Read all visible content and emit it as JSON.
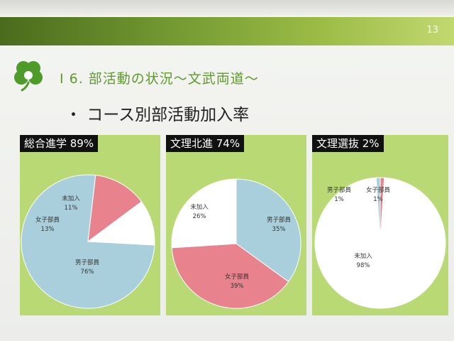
{
  "page": {
    "number": "13"
  },
  "section_title": "Ⅰ 6. 部活動の状況～文武両道～",
  "sub_title": "・ コース別部活動加入率",
  "colors": {
    "boys": "#a9cfdc",
    "girls": "#e8838e",
    "none": "#ffffff",
    "panel": "#b9d974",
    "header_green": "#6f9630",
    "title_green": "#5d9a2b"
  },
  "chart_data": [
    {
      "type": "pie",
      "title": "総合進学 89%",
      "slices": [
        {
          "label": "男子部員",
          "value": 76,
          "pct": "76%",
          "color_key": "boys"
        },
        {
          "label": "女子部員",
          "value": 13,
          "pct": "13%",
          "color_key": "girls"
        },
        {
          "label": "未加入",
          "value": 11,
          "pct": "11%",
          "color_key": "none"
        }
      ]
    },
    {
      "type": "pie",
      "title": "文理北進 74%",
      "slices": [
        {
          "label": "男子部員",
          "value": 35,
          "pct": "35%",
          "color_key": "boys"
        },
        {
          "label": "女子部員",
          "value": 39,
          "pct": "39%",
          "color_key": "girls"
        },
        {
          "label": "未加入",
          "value": 26,
          "pct": "26%",
          "color_key": "none"
        }
      ]
    },
    {
      "type": "pie",
      "title": "文理選抜 2%",
      "slices": [
        {
          "label": "男子部員",
          "value": 1,
          "pct": "1%",
          "color_key": "boys"
        },
        {
          "label": "女子部員",
          "value": 1,
          "pct": "1%",
          "color_key": "girls"
        },
        {
          "label": "未加入",
          "value": 98,
          "pct": "98%",
          "color_key": "none"
        }
      ]
    }
  ]
}
